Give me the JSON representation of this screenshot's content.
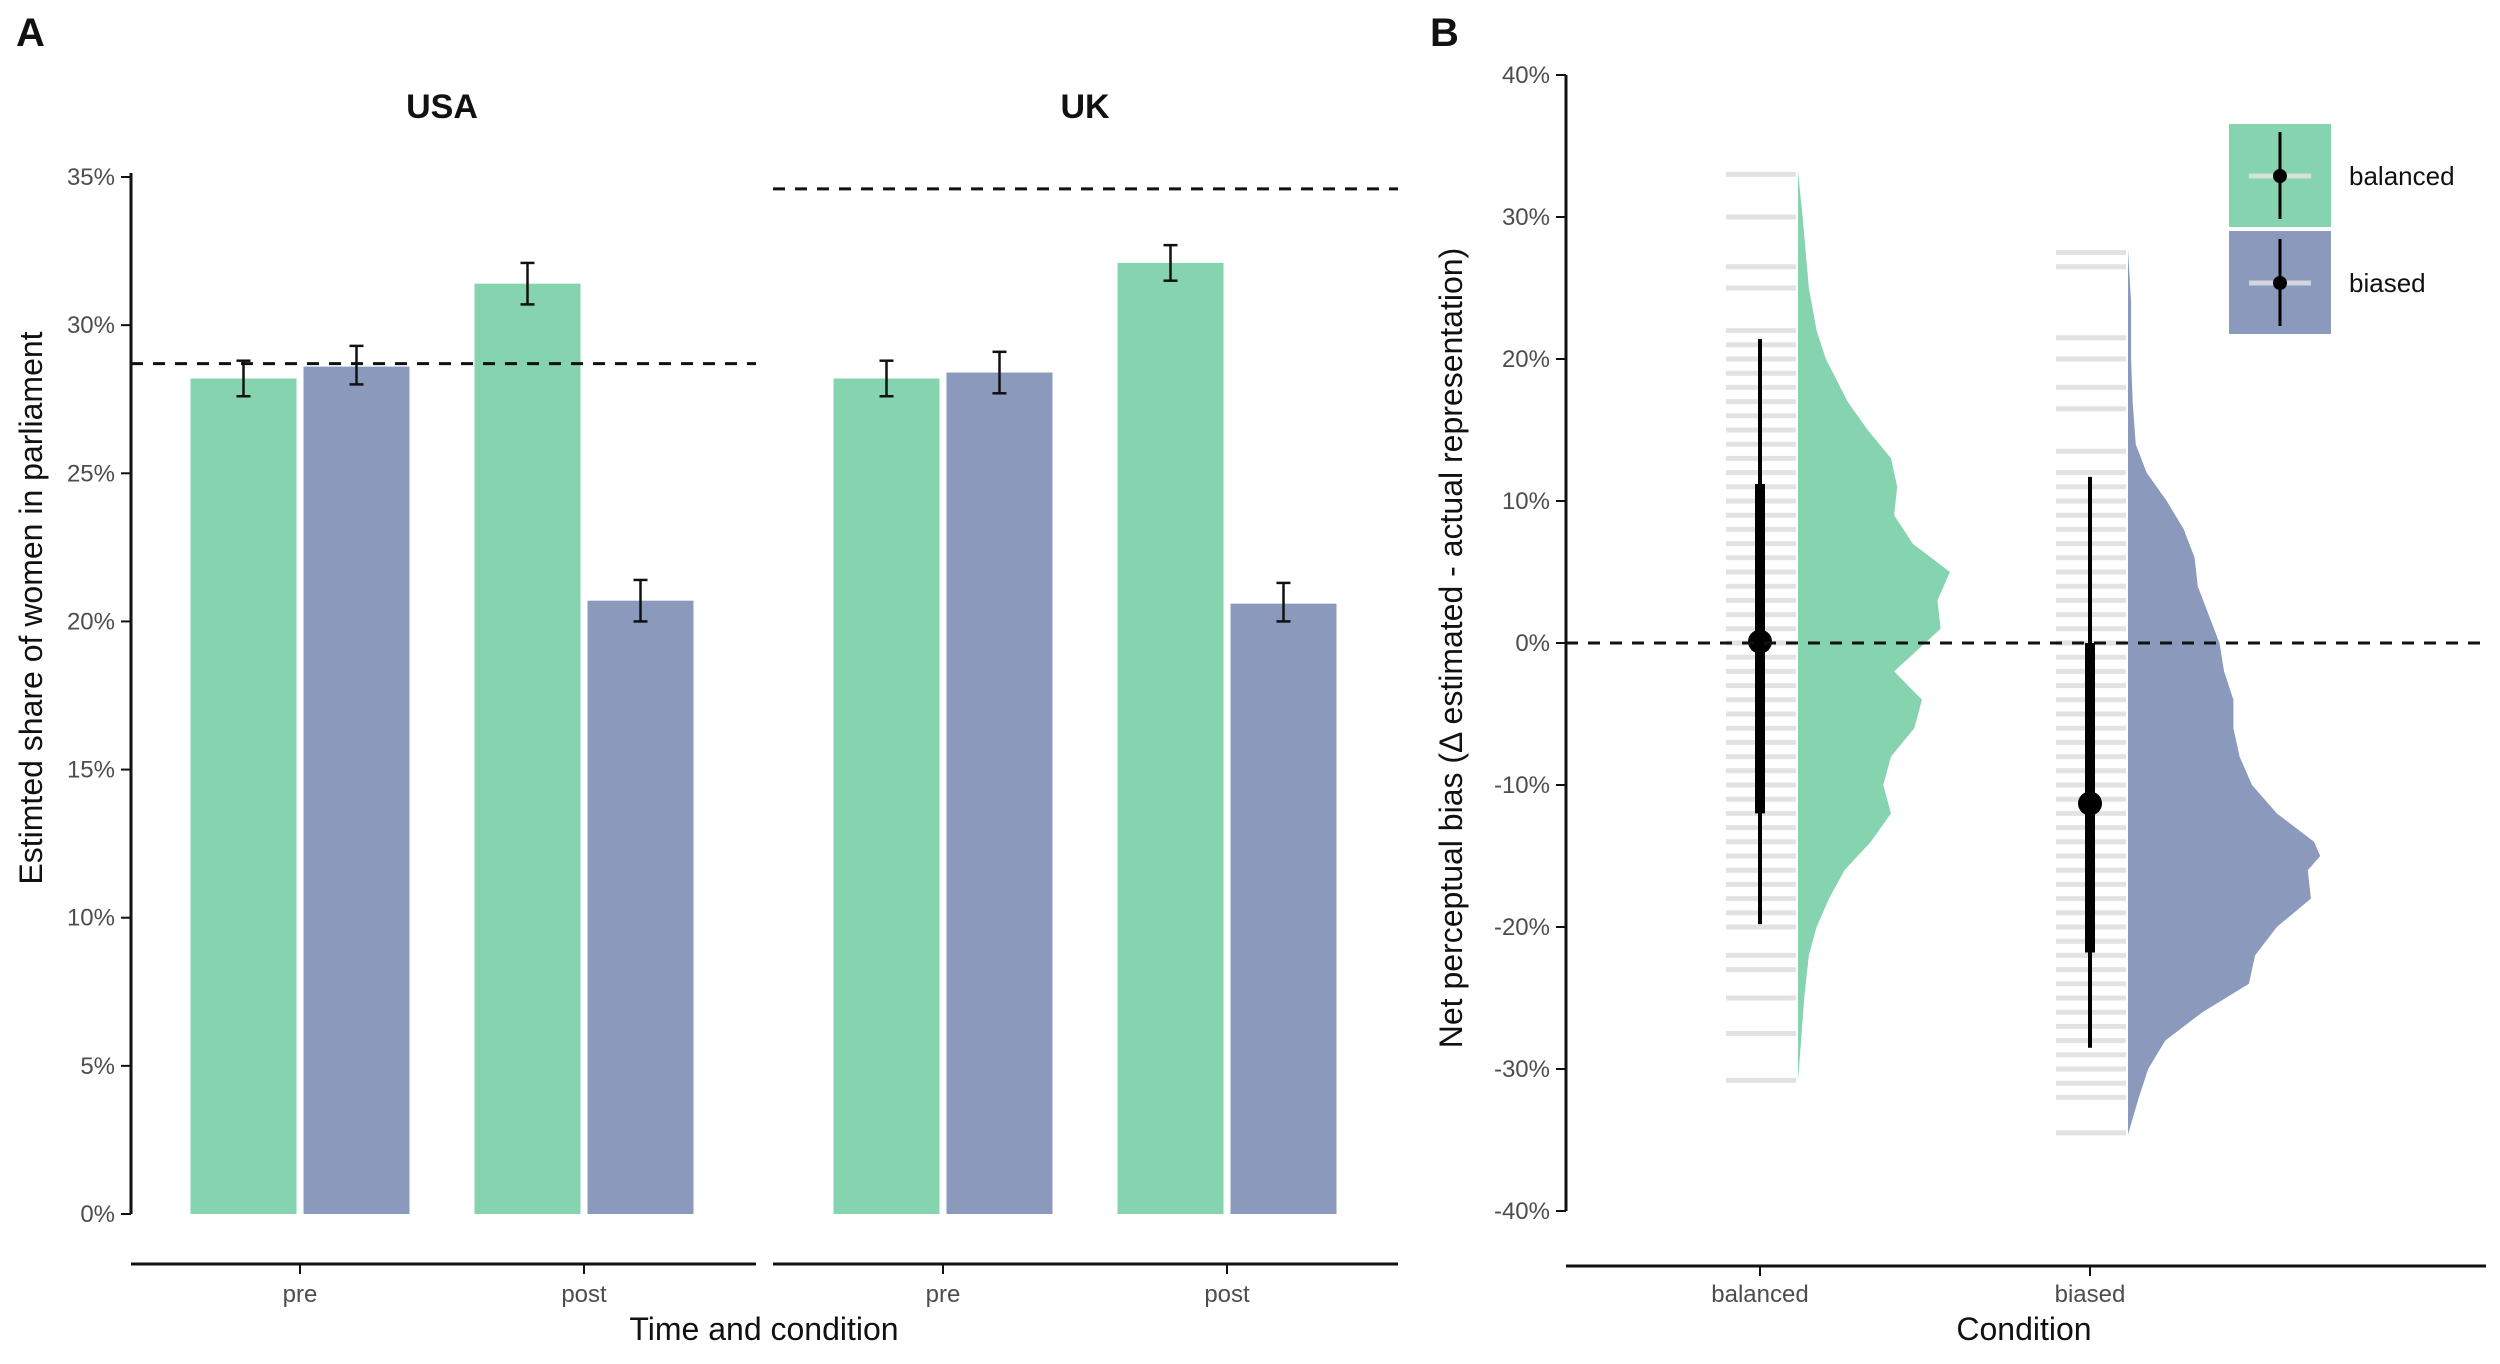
{
  "panels": {
    "a_letter": "A",
    "b_letter": "B"
  },
  "colors": {
    "balanced": "#86d3b0",
    "biased": "#8a99bc",
    "reference_line": "#111111",
    "rug": "#d9d9d9",
    "point": "#000000"
  },
  "chart_data": [
    {
      "panel": "A",
      "type": "bar",
      "xlabel": "Time and condition",
      "ylabel": "Estimted share of women in parliament",
      "ylim": [
        0,
        35
      ],
      "yticks": [
        0,
        5,
        10,
        15,
        20,
        25,
        30,
        35
      ],
      "ytick_labels": [
        "0%",
        "5%",
        "10%",
        "15%",
        "20%",
        "25%",
        "30%",
        "35%"
      ],
      "facets": [
        {
          "name": "USA",
          "categories": [
            "pre",
            "post"
          ],
          "reference_line": 28.7,
          "series": [
            {
              "condition": "balanced",
              "values": [
                28.2,
                31.4
              ],
              "ci_low": [
                27.6,
                30.7
              ],
              "ci_high": [
                28.8,
                32.1
              ]
            },
            {
              "condition": "biased",
              "values": [
                28.6,
                20.7
              ],
              "ci_low": [
                28.0,
                20.0
              ],
              "ci_high": [
                29.3,
                21.4
              ]
            }
          ]
        },
        {
          "name": "UK",
          "categories": [
            "pre",
            "post"
          ],
          "reference_line": 34.6,
          "series": [
            {
              "condition": "balanced",
              "values": [
                28.2,
                32.1
              ],
              "ci_low": [
                27.6,
                31.5
              ],
              "ci_high": [
                28.8,
                32.7
              ]
            },
            {
              "condition": "biased",
              "values": [
                28.4,
                20.6
              ],
              "ci_low": [
                27.7,
                20.0
              ],
              "ci_high": [
                29.1,
                21.3
              ]
            }
          ]
        }
      ]
    },
    {
      "panel": "B",
      "type": "raincloud",
      "xlabel": "Condition",
      "ylabel": "Net perceptual bias (Δ estimated - actual representation)",
      "ylim": [
        -40,
        40
      ],
      "yticks": [
        -40,
        -30,
        -20,
        -10,
        0,
        10,
        20,
        30,
        40
      ],
      "ytick_labels": [
        "-40%",
        "-30%",
        "-20%",
        "-10%",
        "0%",
        "10%",
        "20%",
        "30%",
        "40%"
      ],
      "reference_line": 0,
      "categories": [
        "balanced",
        "biased"
      ],
      "legend": {
        "position": "top-right",
        "entries": [
          "balanced",
          "biased"
        ]
      },
      "summaries": [
        {
          "condition": "balanced",
          "median": 0.1,
          "inner_low": -12,
          "inner_high": 11.2,
          "outer_low": -19.8,
          "outer_high": 21.4,
          "min": -30.8,
          "max": 33.2
        },
        {
          "condition": "biased",
          "median": -11.3,
          "inner_low": -21.8,
          "inner_high": 0,
          "outer_low": -28.5,
          "outer_high": 11.7,
          "min": -34.6,
          "max": 27.7
        }
      ],
      "density_profiles": [
        {
          "condition": "balanced",
          "points": [
            [
              33.2,
              0.0
            ],
            [
              30,
              0.03
            ],
            [
              25,
              0.07
            ],
            [
              22,
              0.12
            ],
            [
              20,
              0.18
            ],
            [
              17,
              0.32
            ],
            [
              15,
              0.45
            ],
            [
              13,
              0.6
            ],
            [
              11,
              0.64
            ],
            [
              9,
              0.62
            ],
            [
              7,
              0.74
            ],
            [
              5,
              0.98
            ],
            [
              3,
              0.9
            ],
            [
              1,
              0.92
            ],
            [
              -1,
              0.72
            ],
            [
              -2,
              0.62
            ],
            [
              -4,
              0.8
            ],
            [
              -6,
              0.75
            ],
            [
              -8,
              0.6
            ],
            [
              -10,
              0.55
            ],
            [
              -12,
              0.6
            ],
            [
              -14,
              0.47
            ],
            [
              -16,
              0.3
            ],
            [
              -18,
              0.2
            ],
            [
              -20,
              0.12
            ],
            [
              -22,
              0.07
            ],
            [
              -25,
              0.04
            ],
            [
              -28,
              0.02
            ],
            [
              -30.8,
              0.0
            ]
          ]
        },
        {
          "condition": "biased",
          "points": [
            [
              27.7,
              0.0
            ],
            [
              24,
              0.02
            ],
            [
              20,
              0.02
            ],
            [
              17,
              0.03
            ],
            [
              14,
              0.05
            ],
            [
              12,
              0.12
            ],
            [
              10,
              0.25
            ],
            [
              8,
              0.36
            ],
            [
              6,
              0.43
            ],
            [
              4,
              0.45
            ],
            [
              2,
              0.52
            ],
            [
              0,
              0.59
            ],
            [
              -2,
              0.62
            ],
            [
              -4,
              0.68
            ],
            [
              -6,
              0.68
            ],
            [
              -8,
              0.72
            ],
            [
              -10,
              0.8
            ],
            [
              -12,
              0.96
            ],
            [
              -14,
              1.2
            ],
            [
              -15,
              1.24
            ],
            [
              -16,
              1.16
            ],
            [
              -18,
              1.18
            ],
            [
              -20,
              0.96
            ],
            [
              -22,
              0.82
            ],
            [
              -24,
              0.78
            ],
            [
              -26,
              0.48
            ],
            [
              -28,
              0.24
            ],
            [
              -30,
              0.13
            ],
            [
              -32,
              0.07
            ],
            [
              -34.6,
              0.0
            ]
          ]
        }
      ],
      "rug": [
        {
          "condition": "balanced",
          "values": [
            33,
            30,
            26.5,
            25,
            22,
            21,
            20,
            19,
            18,
            17,
            16,
            15,
            14,
            13,
            12,
            11,
            10,
            9,
            8,
            7,
            6,
            5,
            4,
            3,
            2,
            1,
            0,
            -1,
            -2,
            -3,
            -4,
            -5,
            -6,
            -7,
            -8,
            -9,
            -10,
            -11,
            -12,
            -13,
            -14,
            -15,
            -16,
            -17,
            -18,
            -19,
            -20,
            -22,
            -23,
            -25,
            -27.5,
            -30.8
          ]
        },
        {
          "condition": "biased",
          "values": [
            27.5,
            26.5,
            21.5,
            20,
            18,
            16.5,
            13.5,
            12,
            11,
            10,
            9,
            8,
            7,
            6,
            5,
            4,
            3,
            2,
            1,
            0,
            -1,
            -2,
            -3,
            -4,
            -5,
            -6,
            -7,
            -8,
            -9,
            -10,
            -11,
            -12,
            -13,
            -14,
            -15,
            -16,
            -17,
            -18,
            -19,
            -20,
            -21,
            -22,
            -23,
            -24,
            -25,
            -26,
            -27,
            -28,
            -29,
            -30,
            -31,
            -32,
            -34.5
          ]
        }
      ]
    }
  ]
}
